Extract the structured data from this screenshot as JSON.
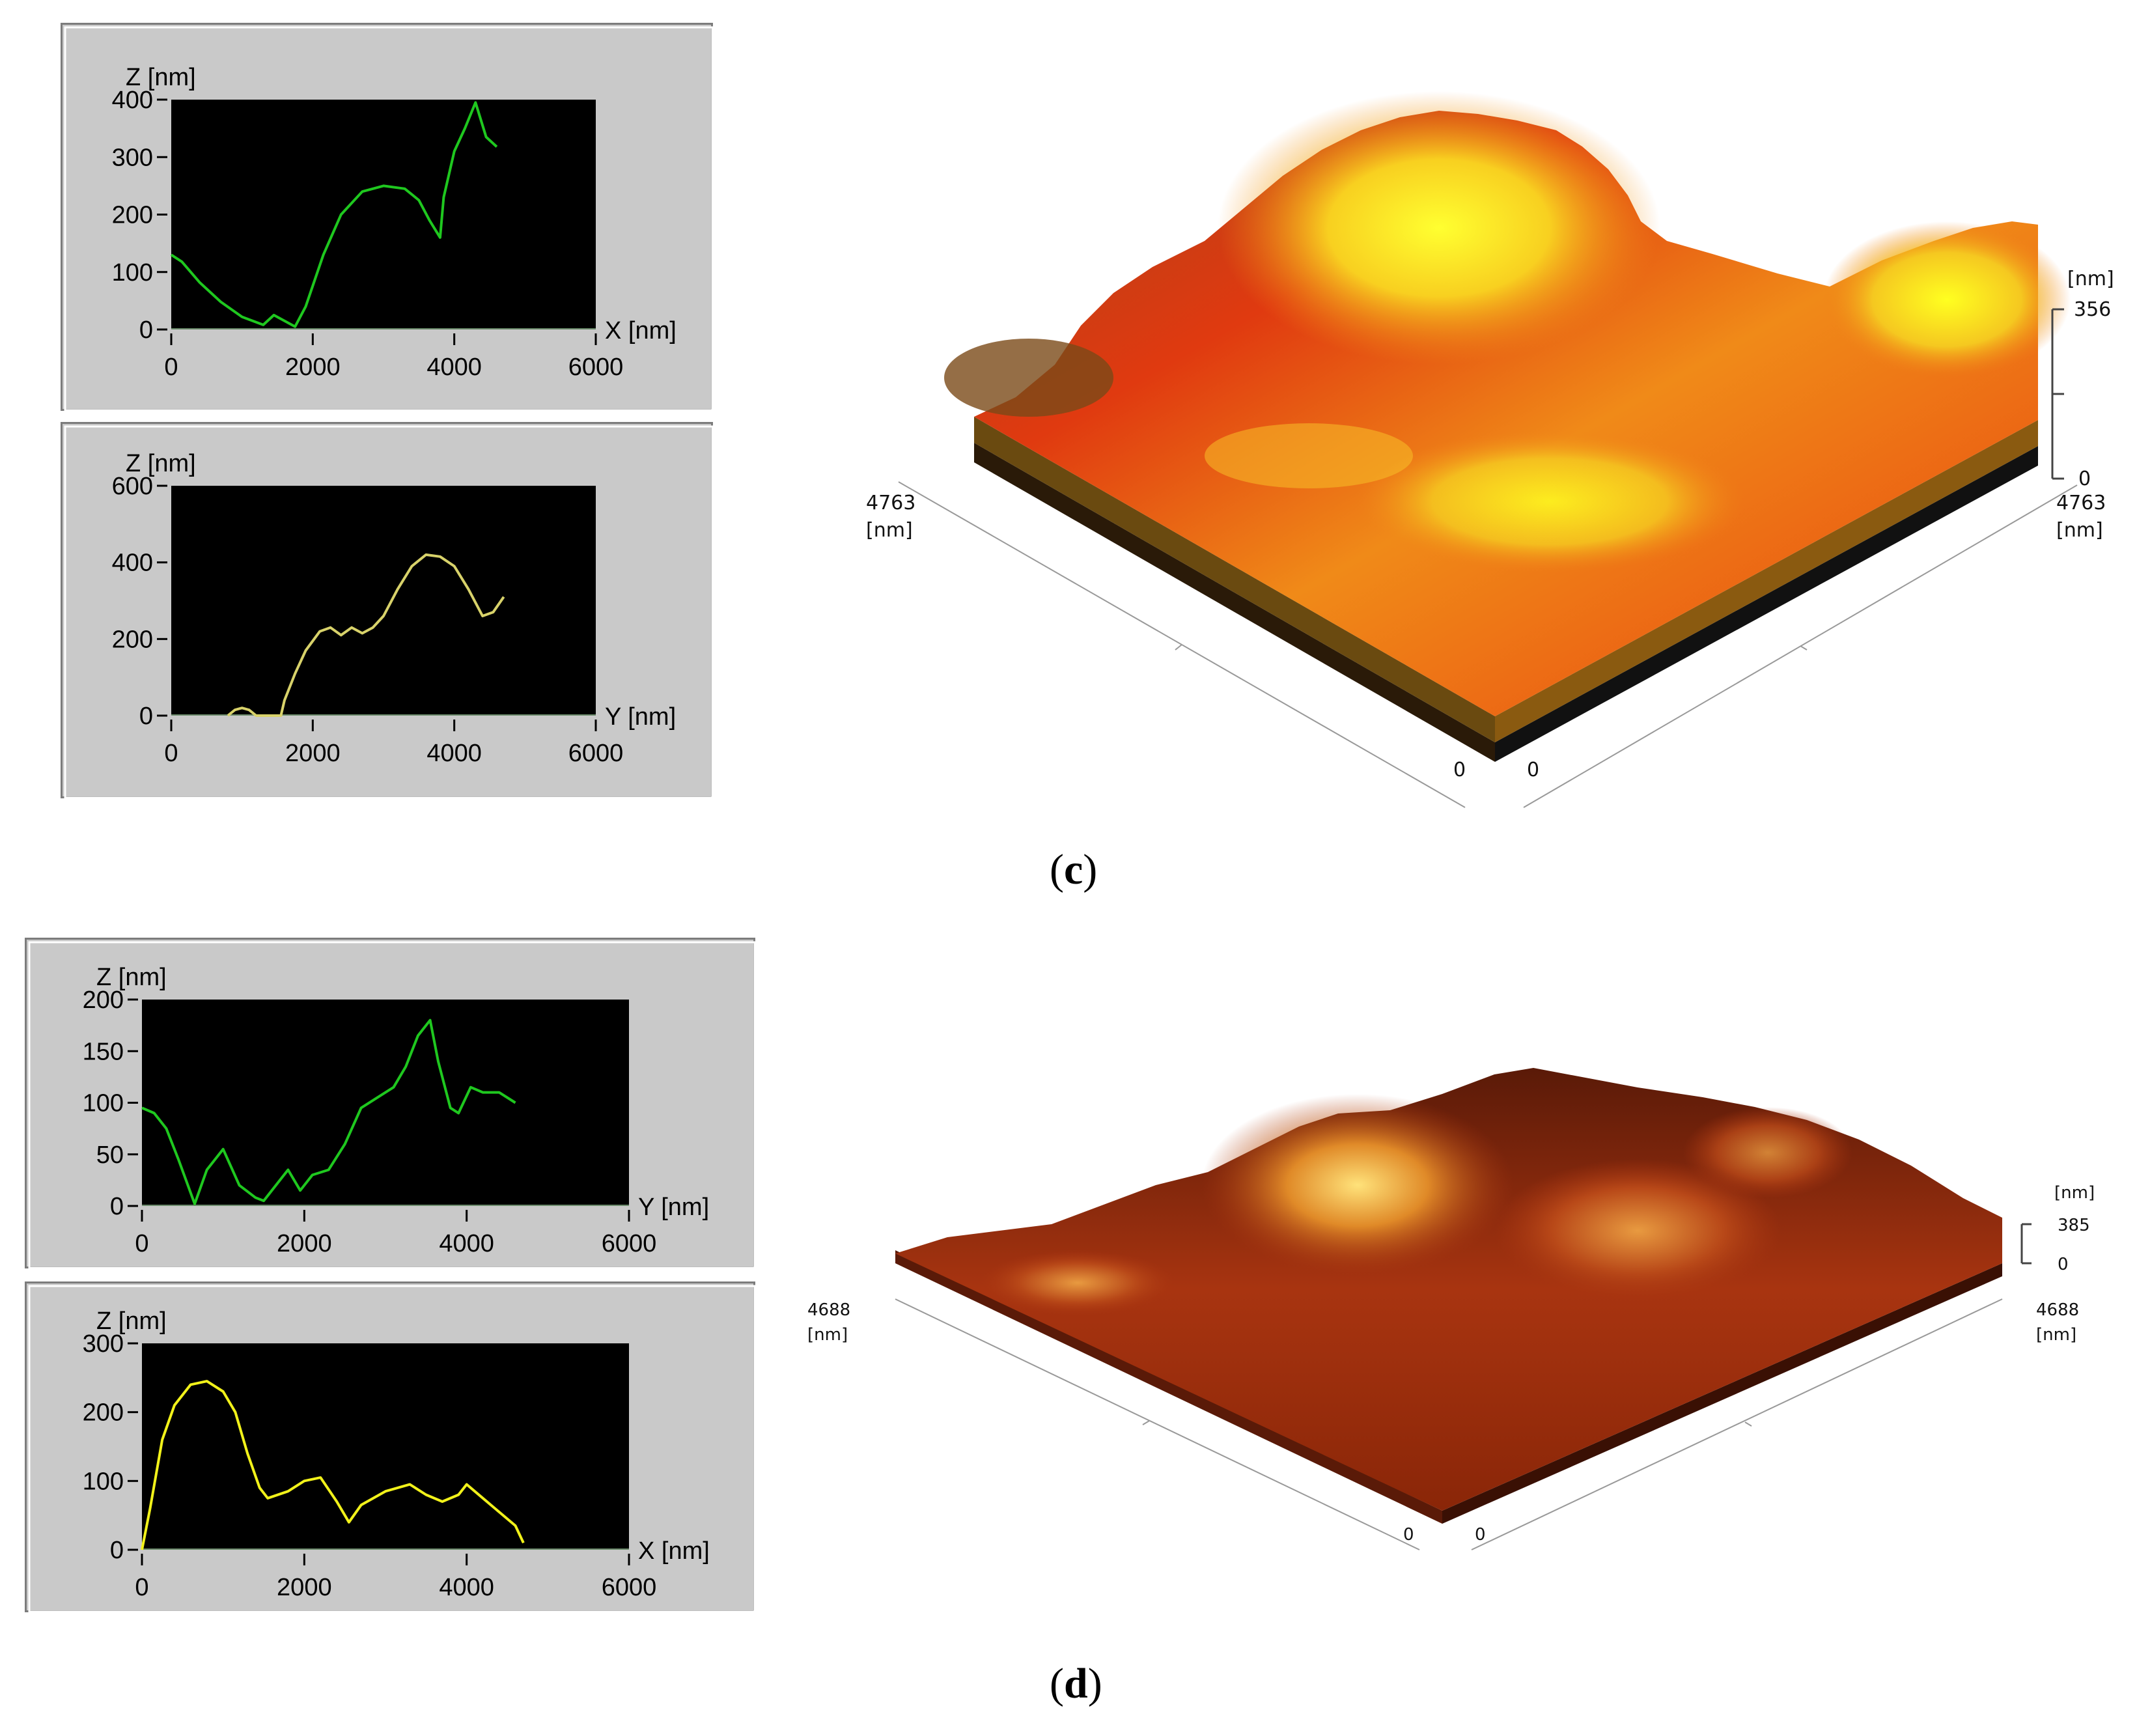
{
  "figure": {
    "caption_c": "c",
    "caption_d": "d"
  },
  "colors": {
    "plot_bg": "#000000",
    "green_trace": "#1fc81f",
    "yellow_trace": "#d8d26a",
    "bright_yellow_trace": "#f2f21a",
    "panel_bg": "#c9c9c9"
  },
  "chart_data": [
    {
      "id": "c-x-profile",
      "type": "line",
      "title": "",
      "ylabel": "Z [nm]",
      "xlabel": "X [nm]",
      "xlim": [
        0,
        6000
      ],
      "ylim": [
        0,
        400
      ],
      "xticks": [
        "0",
        "2000",
        "4000",
        "6000"
      ],
      "yticks": [
        "0",
        "100",
        "200",
        "300",
        "400"
      ],
      "series": [
        {
          "color": "#1fc81f",
          "x": [
            0,
            150,
            400,
            700,
            1000,
            1300,
            1450,
            1600,
            1750,
            1900,
            2150,
            2400,
            2700,
            3000,
            3300,
            3500,
            3650,
            3800,
            3850,
            4000,
            4150,
            4300,
            4450,
            4600
          ],
          "y": [
            130,
            118,
            82,
            48,
            22,
            8,
            25,
            15,
            5,
            40,
            130,
            200,
            240,
            250,
            245,
            225,
            190,
            160,
            230,
            310,
            350,
            395,
            335,
            318
          ]
        }
      ]
    },
    {
      "id": "c-y-profile",
      "type": "line",
      "title": "",
      "ylabel": "Z [nm]",
      "xlabel": "Y [nm]",
      "xlim": [
        0,
        6000
      ],
      "ylim": [
        0,
        600
      ],
      "xticks": [
        "0",
        "2000",
        "4000",
        "6000"
      ],
      "yticks": [
        "0",
        "200",
        "400",
        "600"
      ],
      "series": [
        {
          "color": "#d8d26a",
          "x": [
            800,
            900,
            1000,
            1100,
            1200,
            1550,
            1600,
            1750,
            1900,
            2100,
            2250,
            2400,
            2550,
            2700,
            2850,
            3000,
            3200,
            3400,
            3600,
            3800,
            4000,
            4200,
            4400,
            4550,
            4700
          ],
          "y": [
            0,
            15,
            20,
            15,
            0,
            0,
            40,
            110,
            170,
            220,
            230,
            210,
            230,
            215,
            230,
            260,
            330,
            390,
            420,
            415,
            390,
            330,
            260,
            270,
            310
          ]
        }
      ]
    },
    {
      "id": "d-y-profile",
      "type": "line",
      "title": "",
      "ylabel": "Z [nm]",
      "xlabel": "Y [nm]",
      "xlim": [
        0,
        6000
      ],
      "ylim": [
        0,
        200
      ],
      "xticks": [
        "0",
        "2000",
        "4000",
        "6000"
      ],
      "yticks": [
        "0",
        "50",
        "100",
        "150",
        "200"
      ],
      "series": [
        {
          "color": "#1fc81f",
          "x": [
            0,
            150,
            300,
            450,
            650,
            800,
            1000,
            1200,
            1400,
            1500,
            1700,
            1800,
            1950,
            2100,
            2300,
            2500,
            2700,
            2900,
            3100,
            3250,
            3400,
            3550,
            3650,
            3800,
            3900,
            4050,
            4200,
            4400,
            4600
          ],
          "y": [
            95,
            90,
            75,
            45,
            2,
            35,
            55,
            20,
            8,
            5,
            25,
            35,
            15,
            30,
            35,
            60,
            95,
            105,
            115,
            135,
            165,
            180,
            140,
            95,
            90,
            115,
            110,
            110,
            100
          ]
        }
      ]
    },
    {
      "id": "d-x-profile",
      "type": "line",
      "title": "",
      "ylabel": "Z [nm]",
      "xlabel": "X [nm]",
      "xlim": [
        0,
        6000
      ],
      "ylim": [
        0,
        300
      ],
      "xticks": [
        "0",
        "2000",
        "4000",
        "6000"
      ],
      "yticks": [
        "0",
        "100",
        "200",
        "300"
      ],
      "series": [
        {
          "color": "#f2f21a",
          "x": [
            0,
            100,
            250,
            400,
            600,
            800,
            1000,
            1150,
            1300,
            1450,
            1550,
            1800,
            2000,
            2200,
            2400,
            2550,
            2700,
            3000,
            3300,
            3500,
            3700,
            3900,
            4000,
            4200,
            4400,
            4600,
            4700
          ],
          "y": [
            0,
            60,
            160,
            210,
            240,
            245,
            230,
            200,
            140,
            90,
            75,
            85,
            100,
            105,
            70,
            40,
            65,
            85,
            95,
            80,
            70,
            80,
            95,
            75,
            55,
            35,
            10
          ]
        }
      ]
    }
  ],
  "surfaces": {
    "c": {
      "axis_left_value": "4763",
      "axis_left_unit": "[nm]",
      "axis_right_value": "4763",
      "axis_right_unit": "[nm]",
      "origin_left": "0",
      "origin_right": "0",
      "z_unit": "[nm]",
      "z_max": "356",
      "z_min": "0"
    },
    "d": {
      "axis_left_value": "4688",
      "axis_left_unit": "[nm]",
      "axis_right_value": "4688",
      "axis_right_unit": "[nm]",
      "origin_left": "0",
      "origin_right": "0",
      "z_unit": "[nm]",
      "z_max": "385",
      "z_min": "0"
    }
  }
}
